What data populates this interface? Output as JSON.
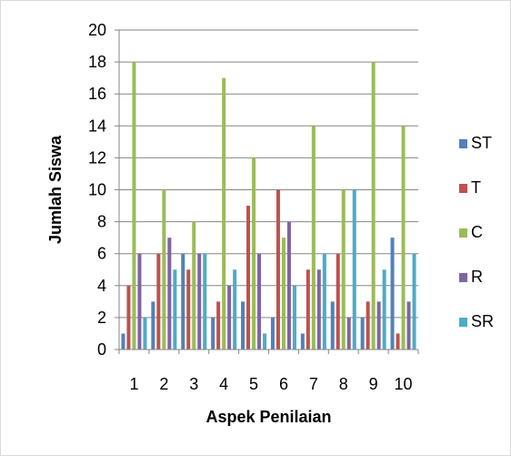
{
  "chart_data": {
    "type": "bar",
    "title": "",
    "xlabel": "Aspek Penilaian",
    "ylabel": "Jumlah Siswa",
    "ylim": [
      0,
      20
    ],
    "ytick_step": 2,
    "grid": true,
    "legend_position": "right",
    "categories": [
      "1",
      "2",
      "3",
      "4",
      "5",
      "6",
      "7",
      "8",
      "9",
      "10"
    ],
    "series": [
      {
        "name": "ST",
        "color": "#4f81bd",
        "values": [
          1,
          3,
          6,
          2,
          3,
          2,
          1,
          3,
          2,
          7
        ]
      },
      {
        "name": "T",
        "color": "#c0504d",
        "values": [
          4,
          6,
          5,
          3,
          9,
          10,
          5,
          6,
          3,
          1
        ]
      },
      {
        "name": "C",
        "color": "#9bbb59",
        "values": [
          18,
          10,
          8,
          17,
          12,
          7,
          14,
          10,
          18,
          14
        ]
      },
      {
        "name": "R",
        "color": "#8064a2",
        "values": [
          6,
          7,
          6,
          4,
          6,
          8,
          5,
          2,
          3,
          3
        ]
      },
      {
        "name": "SR",
        "color": "#4bacc6",
        "values": [
          2,
          5,
          6,
          5,
          1,
          4,
          6,
          10,
          5,
          6
        ]
      }
    ]
  }
}
